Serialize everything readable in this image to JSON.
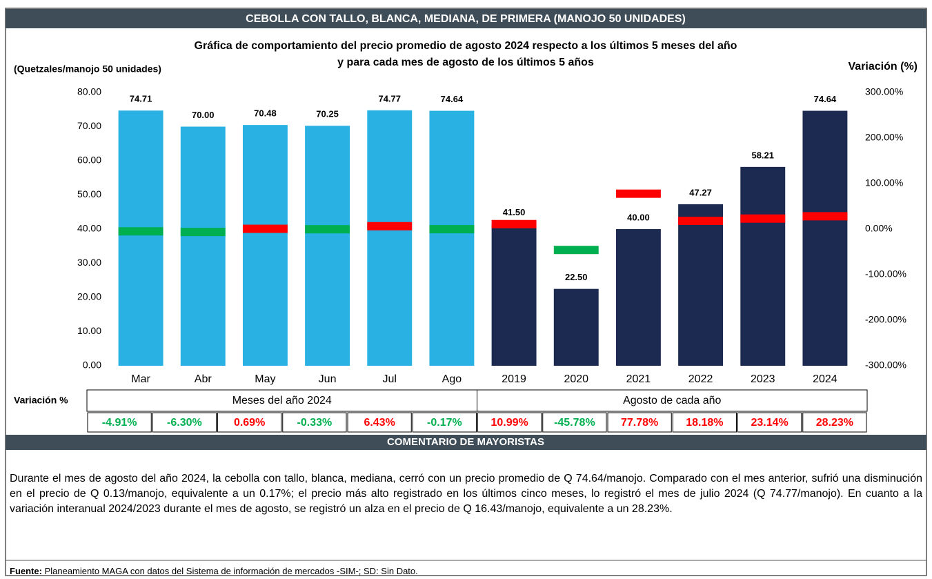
{
  "header": {
    "title": "CEBOLLA CON TALLO, BLANCA, MEDIANA, DE PRIMERA (MANOJO 50 UNIDADES)"
  },
  "chart_data": {
    "type": "bar",
    "title": "Gráfica de comportamiento del precio promedio de agosto 2024 respecto a los últimos 5 meses del año",
    "subtitle": "y para cada mes de agosto de los últimos 5 años",
    "y_label": "(Quetzales/manojo 50 unidades)",
    "y2_label": "Variación (%)",
    "categories": [
      "Mar",
      "Abr",
      "May",
      "Jun",
      "Jul",
      "Ago",
      "2019",
      "2020",
      "2021",
      "2022",
      "2023",
      "2024"
    ],
    "values": [
      74.71,
      70.0,
      70.48,
      70.25,
      74.77,
      74.64,
      41.5,
      22.5,
      40.0,
      47.27,
      58.21,
      74.64
    ],
    "value_labels": [
      "74.71",
      "70.00",
      "70.48",
      "70.25",
      "74.77",
      "74.64",
      "41.50",
      "22.50",
      "40.00",
      "47.27",
      "58.21",
      "74.64"
    ],
    "colors": [
      "#29b1e4",
      "#29b1e4",
      "#29b1e4",
      "#29b1e4",
      "#29b1e4",
      "#29b1e4",
      "#1c2a52",
      "#1c2a52",
      "#1c2a52",
      "#1c2a52",
      "#1c2a52",
      "#1c2a52"
    ],
    "ylim": [
      0,
      80
    ],
    "yticks": [
      {
        "value": 0,
        "label": "0.00"
      },
      {
        "value": 10,
        "label": "10.00"
      },
      {
        "value": 20,
        "label": "20.00"
      },
      {
        "value": 30,
        "label": "30.00"
      },
      {
        "value": 40,
        "label": "40.00"
      },
      {
        "value": 50,
        "label": "50.00"
      },
      {
        "value": 60,
        "label": "60.00"
      },
      {
        "value": 70,
        "label": "70.00"
      },
      {
        "value": 80,
        "label": "80.00"
      }
    ],
    "y2lim": [
      -300,
      300
    ],
    "y2ticks": [
      {
        "value": -300,
        "label": "-300.00%"
      },
      {
        "value": -200,
        "label": "-200.00%"
      },
      {
        "value": -100,
        "label": "-100.00%"
      },
      {
        "value": 0,
        "label": "0.00%"
      },
      {
        "value": 100,
        "label": "100.00%"
      },
      {
        "value": 200,
        "label": "200.00%"
      },
      {
        "value": 300,
        "label": "300.00%"
      }
    ],
    "variation": {
      "axis": "y2",
      "up_color": "#ff0000",
      "down_color": "#00b050",
      "values": [
        -4.91,
        -6.3,
        0.69,
        -0.33,
        6.43,
        -0.17,
        10.99,
        -45.78,
        77.78,
        18.18,
        23.14,
        28.23
      ],
      "value_labels": [
        "-4.91%",
        "-6.30%",
        "0.69%",
        "-0.33%",
        "6.43%",
        "-0.17%",
        "10.99%",
        "-45.78%",
        "77.78%",
        "18.18%",
        "23.14%",
        "28.23%"
      ]
    },
    "table": {
      "row_label": "Variación %",
      "groups": [
        "Meses del año  2024",
        "Agosto de cada año"
      ]
    }
  },
  "comment": {
    "title": "COMENTARIO DE MAYORISTAS",
    "text": "Durante el mes de agosto del año 2024, la cebolla con tallo, blanca, mediana, cerró con un precio promedio de Q 74.64/manojo. Comparado con el mes anterior, sufrió una disminución en el precio de Q 0.13/manojo, equivalente a un 0.17%; el precio más alto registrado en los últimos cinco meses, lo registró el mes de julio 2024 (Q 74.77/manojo). En cuanto a la variación interanual 2024/2023 durante el mes de agosto, se registró un alza en el precio de Q 16.43/manojo, equivalente a un 28.23%."
  },
  "source": {
    "label": "Fuente:",
    "text": " Planeamiento MAGA con datos del Sistema de información de mercados -SIM-; SD: Sin Dato."
  }
}
